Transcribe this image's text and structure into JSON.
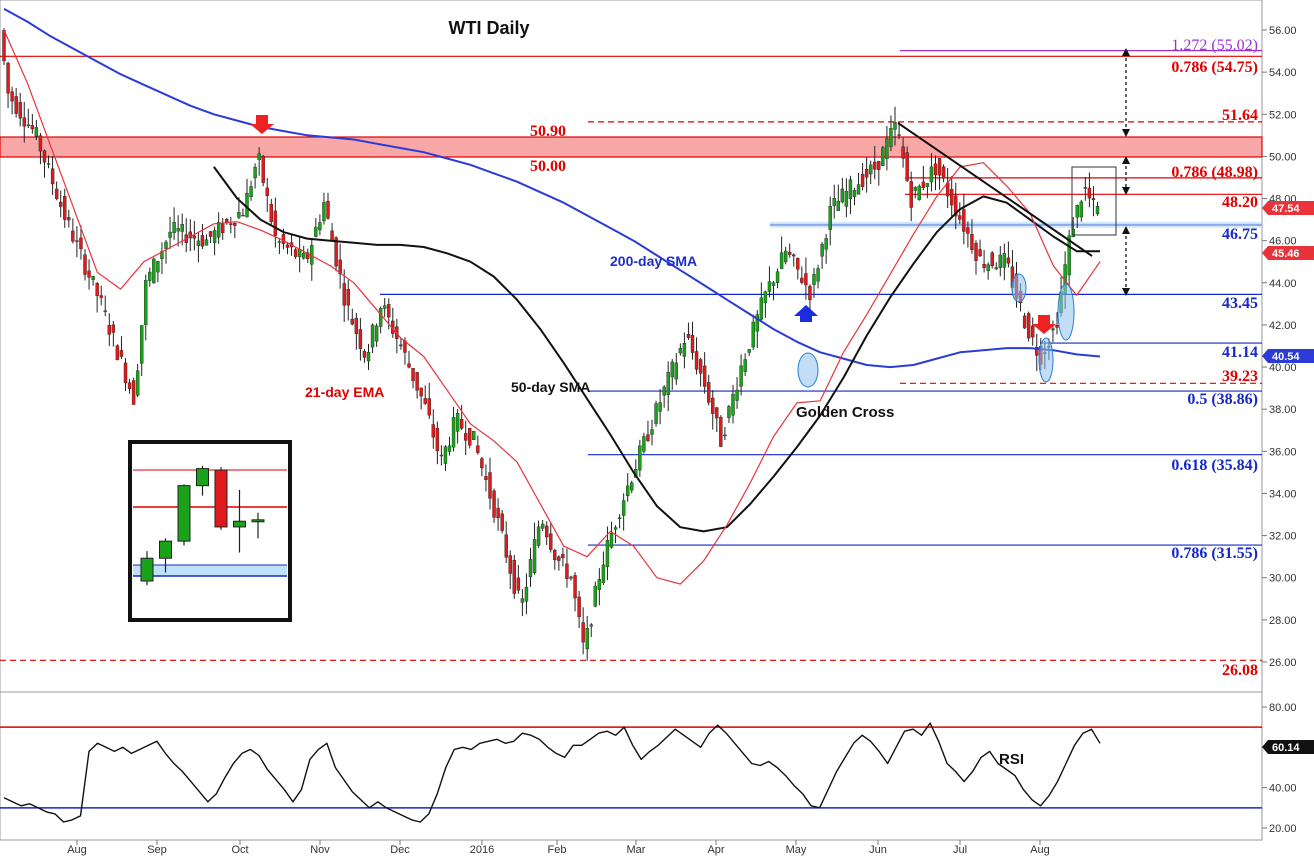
{
  "chart_data": {
    "type": "candlestick",
    "title": "WTI Daily",
    "main_panel": {
      "y_axis_ticks": [
        "56.00",
        "54.00",
        "52.00",
        "50.00",
        "48.00",
        "46.00",
        "44.00",
        "42.00",
        "40.00",
        "38.00",
        "36.00",
        "34.00",
        "32.00",
        "30.00",
        "28.00",
        "26.00"
      ],
      "ylim": [
        25.4,
        57.0
      ],
      "x_axis_months": [
        "Aug",
        "Sep",
        "Oct",
        "Nov",
        "Dec",
        "2016",
        "Feb",
        "Mar",
        "Apr",
        "May",
        "Jun",
        "Jul",
        "Aug"
      ],
      "price_badges": [
        {
          "value": "47.54",
          "color": "#e8333a"
        },
        {
          "value": "45.46",
          "color": "#e8333a"
        },
        {
          "value": "40.54",
          "color": "#2a3bd6"
        }
      ],
      "levels": [
        {
          "label": "1.272 (55.02)",
          "value": 55.02,
          "color": "#9b30d9"
        },
        {
          "label": "0.786 (54.75)",
          "value": 54.75,
          "color": "#e00000"
        },
        {
          "label": "51.64",
          "value": 51.64,
          "color": "#e00000"
        },
        {
          "label": "50.90",
          "value": 50.9,
          "color": "#e00000"
        },
        {
          "label": "50.00",
          "value": 50.0,
          "color": "#e00000"
        },
        {
          "label": "0.786 (48.98)",
          "value": 48.98,
          "color": "#e00000"
        },
        {
          "label": "48.20",
          "value": 48.2,
          "color": "#e00000"
        },
        {
          "label": "46.75",
          "value": 46.75,
          "color": "#1528c9"
        },
        {
          "label": "43.45",
          "value": 43.45,
          "color": "#1528c9"
        },
        {
          "label": "41.14",
          "value": 41.14,
          "color": "#1528c9"
        },
        {
          "label": "39.23",
          "value": 39.23,
          "color": "#e00000"
        },
        {
          "label": "0.5 (38.86)",
          "value": 38.86,
          "color": "#1528c9"
        },
        {
          "label": "0.618 (35.84)",
          "value": 35.84,
          "color": "#1528c9"
        },
        {
          "label": "0.786 (31.55)",
          "value": 31.55,
          "color": "#1528c9"
        },
        {
          "label": "26.08",
          "value": 26.08,
          "color": "#e00000"
        }
      ],
      "annotations": [
        "200-day SMA",
        "21-day EMA",
        "50-day SMA",
        "Golden Cross"
      ],
      "series": [
        {
          "name": "200-day SMA",
          "color": "#2a3bd6",
          "values": [
            57.0,
            56.4,
            55.7,
            55.1,
            54.5,
            53.9,
            53.4,
            52.9,
            52.4,
            52.0,
            51.7,
            51.4,
            51.2,
            51.0,
            50.9,
            50.8,
            50.6,
            50.4,
            50.2,
            49.9,
            49.6,
            49.2,
            48.8,
            48.3,
            47.8,
            47.2,
            46.6,
            46.0,
            45.3,
            44.6,
            43.9,
            43.2,
            42.5,
            41.8,
            41.2,
            40.7,
            40.4,
            40.1,
            40.0,
            40.1,
            40.4,
            40.7,
            40.8,
            40.9,
            40.9,
            40.8,
            40.6,
            40.5
          ]
        },
        {
          "name": "50-day SMA",
          "color": "#111111",
          "values": [
            null,
            null,
            null,
            null,
            null,
            null,
            null,
            null,
            null,
            49.5,
            48.0,
            47.0,
            46.4,
            46.1,
            46.0,
            45.9,
            45.8,
            45.8,
            45.7,
            45.4,
            45.0,
            44.3,
            43.2,
            41.8,
            40.2,
            38.5,
            36.8,
            35.0,
            33.4,
            32.4,
            32.2,
            32.4,
            33.5,
            34.8,
            36.2,
            37.7,
            39.5,
            41.5,
            43.3,
            44.9,
            46.4,
            47.5,
            48.1,
            47.8,
            47.0,
            46.2,
            45.5,
            45.5
          ]
        },
        {
          "name": "21-day EMA",
          "color": "#e8333a",
          "values": [
            56.0,
            53.5,
            50.5,
            47.5,
            44.5,
            43.7,
            45.0,
            45.6,
            46.2,
            46.8,
            46.9,
            46.5,
            46.0,
            45.4,
            44.8,
            44.0,
            42.7,
            41.4,
            40.5,
            38.9,
            37.3,
            36.5,
            35.5,
            33.5,
            31.5,
            31.0,
            32.2,
            31.5,
            30.0,
            29.7,
            30.8,
            32.5,
            34.5,
            36.7,
            38.3,
            38.4,
            40.7,
            42.5,
            44.4,
            46.3,
            48.1,
            49.5,
            49.7,
            48.6,
            47.3,
            44.8,
            43.4,
            45.0
          ]
        }
      ]
    },
    "rsi_panel": {
      "label": "RSI",
      "y_axis_ticks": [
        "80.00",
        "60.00",
        "40.00",
        "20.00"
      ],
      "ylim": [
        16,
        88
      ],
      "overbought": 70,
      "oversold": 30,
      "current_badge": "60.14",
      "values": [
        35,
        33,
        31,
        32,
        30,
        28,
        27,
        23,
        24,
        26,
        58,
        62,
        60,
        58,
        60,
        57,
        59,
        61,
        63,
        57,
        52,
        48,
        43,
        38,
        33,
        37,
        45,
        52,
        57,
        59,
        56,
        49,
        44,
        39,
        33,
        39,
        54,
        59,
        62,
        50,
        44,
        38,
        34,
        30,
        33,
        30,
        28,
        26,
        24,
        23,
        27,
        37,
        50,
        59,
        60,
        59,
        62,
        63,
        64,
        62,
        63,
        67,
        66,
        64,
        60,
        57,
        55,
        61,
        61,
        64,
        67,
        68,
        66,
        70,
        61,
        54,
        58,
        61,
        65,
        69,
        66,
        63,
        60,
        67,
        71,
        67,
        62,
        57,
        52,
        51,
        53,
        50,
        46,
        41,
        37,
        31,
        30,
        39,
        48,
        55,
        62,
        66,
        63,
        58,
        52,
        60,
        68,
        69,
        66,
        72,
        63,
        52,
        48,
        43,
        48,
        55,
        58,
        52,
        49,
        46,
        39,
        34,
        31,
        36,
        43,
        52,
        61,
        67,
        69,
        62
      ]
    },
    "inset": {
      "description": "zoomed candlestick inset",
      "candles": [
        {
          "o": 28.2,
          "h": 30.3,
          "l": 27.9,
          "c": 29.8
        },
        {
          "o": 29.8,
          "h": 31.2,
          "l": 28.8,
          "c": 31.0
        },
        {
          "o": 31.0,
          "h": 35.0,
          "l": 30.7,
          "c": 34.9
        },
        {
          "o": 34.9,
          "h": 36.3,
          "l": 34.2,
          "c": 36.1
        },
        {
          "o": 36.0,
          "h": 36.2,
          "l": 31.8,
          "c": 32.0
        },
        {
          "o": 32.0,
          "h": 34.6,
          "l": 30.2,
          "c": 32.4
        },
        {
          "o": 32.5,
          "h": 33.0,
          "l": 31.2,
          "c": 32.5
        }
      ]
    }
  }
}
